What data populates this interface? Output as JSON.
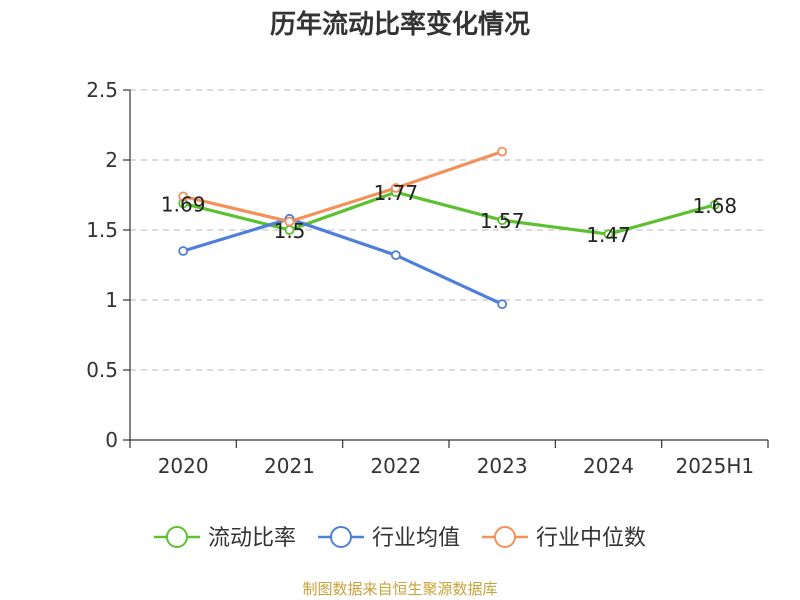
{
  "chart_data": {
    "type": "line",
    "title": "历年流动比率变化情况",
    "categories": [
      "2020",
      "2021",
      "2022",
      "2023",
      "2024",
      "2025H1"
    ],
    "ylim": [
      0,
      2.5
    ],
    "yticks": [
      "0",
      "0.5",
      "1",
      "1.5",
      "2",
      "2.5"
    ],
    "grid": true,
    "legend_position": "bottom",
    "series": [
      {
        "name": "流动比率",
        "color": "#5cc12f",
        "values": [
          1.69,
          1.5,
          1.77,
          1.57,
          1.47,
          1.68
        ],
        "labels": [
          "1.69",
          "1.5",
          "1.77",
          "1.57",
          "1.47",
          "1.68"
        ]
      },
      {
        "name": "行业均值",
        "color": "#4e7fd9",
        "values": [
          1.35,
          1.58,
          1.32,
          0.97,
          null,
          null
        ]
      },
      {
        "name": "行业中位数",
        "color": "#f4905a",
        "values": [
          1.74,
          1.56,
          1.8,
          2.06,
          null,
          null
        ]
      }
    ],
    "source": "制图数据来自恒生聚源数据库"
  }
}
